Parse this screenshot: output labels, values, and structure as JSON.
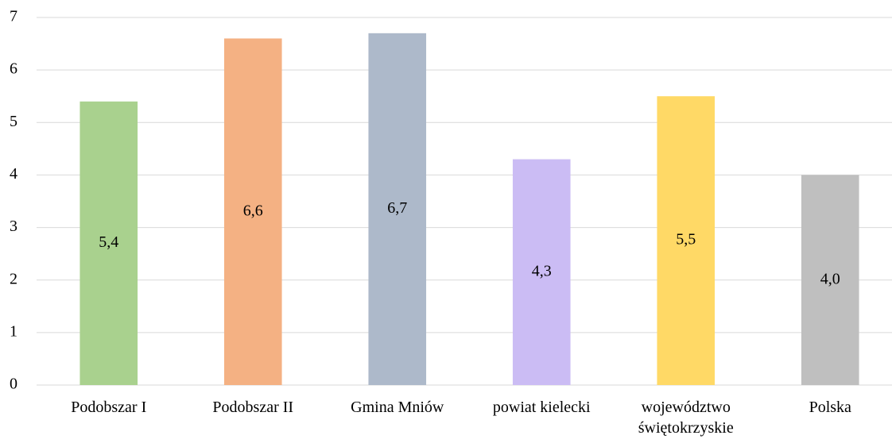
{
  "chart_data": {
    "type": "bar",
    "categories": [
      "Podobszar I",
      "Podobszar II",
      "Gmina Mniów",
      "powiat kielecki",
      "województwo świętokrzyskie",
      "Polska"
    ],
    "values": [
      5.4,
      6.6,
      6.7,
      4.3,
      5.5,
      4.0
    ],
    "value_labels": [
      "5,4",
      "6,6",
      "6,7",
      "4,3",
      "5,5",
      "4,0"
    ],
    "colors": [
      "#a9d18e",
      "#f4b183",
      "#adb9ca",
      "#cbbcf4",
      "#ffd966",
      "#bfbfbf"
    ],
    "ylim": [
      0,
      7
    ],
    "yticks": [
      0,
      1,
      2,
      3,
      4,
      5,
      6,
      7
    ],
    "grid": true
  }
}
